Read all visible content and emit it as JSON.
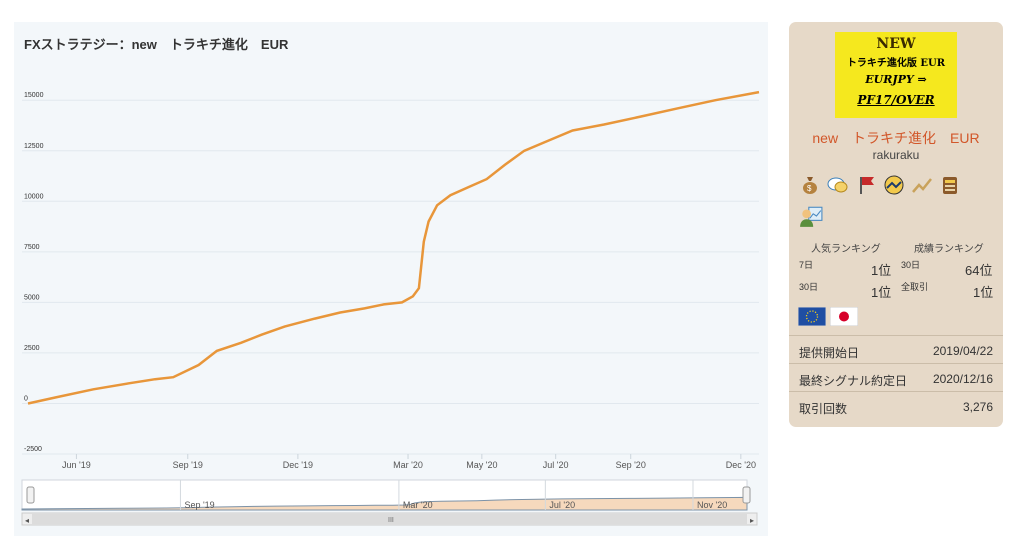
{
  "chart_data": {
    "type": "line",
    "title": "FXストラテジー：new　トラキチ進化　EUR",
    "y_ticks": [
      "15000",
      "12500",
      "10000",
      "7500",
      "5000",
      "2500",
      "0",
      "-2500"
    ],
    "ylim": [
      -2500,
      16000
    ],
    "x_ticks": [
      "Jun '19",
      "Sep '19",
      "Dec '19",
      "Mar '20",
      "May '20",
      "Jul '20",
      "Sep '20",
      "Dec '20"
    ],
    "navigator_ticks": [
      "Sep '19",
      "Mar '20",
      "Jul '20",
      "Nov '20"
    ],
    "scroll_label": "III",
    "grid": true,
    "color": "#e8963a",
    "series": [
      {
        "x": [
          "2019-04-22",
          "2019-05-15",
          "2019-06-15",
          "2019-07-15",
          "2019-08-05",
          "2019-08-20",
          "2019-09-10",
          "2019-09-25",
          "2019-10-15",
          "2019-11-01",
          "2019-11-20",
          "2019-12-15",
          "2020-01-05",
          "2020-01-25",
          "2020-02-10",
          "2020-02-25",
          "2020-03-05",
          "2020-03-10",
          "2020-03-14",
          "2020-03-18",
          "2020-03-25",
          "2020-04-05",
          "2020-04-20",
          "2020-05-05",
          "2020-05-20",
          "2020-06-05",
          "2020-06-25",
          "2020-07-15",
          "2020-08-10",
          "2020-09-10",
          "2020-10-10",
          "2020-11-10",
          "2020-12-16"
        ],
        "values": [
          0,
          300,
          700,
          1000,
          1200,
          1300,
          1900,
          2600,
          3000,
          3400,
          3800,
          4200,
          4500,
          4700,
          4900,
          5000,
          5300,
          5700,
          8000,
          9000,
          9800,
          10300,
          10700,
          11100,
          11800,
          12500,
          13000,
          13500,
          13800,
          14200,
          14600,
          15000,
          15400
        ]
      }
    ]
  },
  "card": {
    "banner": {
      "line1": "NEW",
      "line2": "トラキチ進化版 EUR",
      "line3": "EURJPY ⇒",
      "line4": "PF17/OVER"
    },
    "name": "new　トラキチ進化　EUR",
    "author": "rakuraku",
    "icons": [
      "money-bag-icon",
      "chat-icon",
      "flag-icon",
      "badge-icon",
      "chart-trend-icon",
      "document-icon",
      "analyst-icon"
    ],
    "popular_label": "人気ランキング",
    "perf_label": "成績ランキング",
    "r1_label": "7日",
    "r1_value": "1位",
    "r2_label": "30日",
    "r2_value": "64位",
    "r3_label": "30日",
    "r3_value": "1位",
    "r4_label": "全取引",
    "r4_value": "1位",
    "flags": [
      "EU",
      "JP"
    ],
    "start_label": "提供開始日",
    "start_value": "2019/04/22",
    "last_label": "最終シグナル約定日",
    "last_value": "2020/12/16",
    "trades_label": "取引回数",
    "trades_value": "3,276"
  }
}
